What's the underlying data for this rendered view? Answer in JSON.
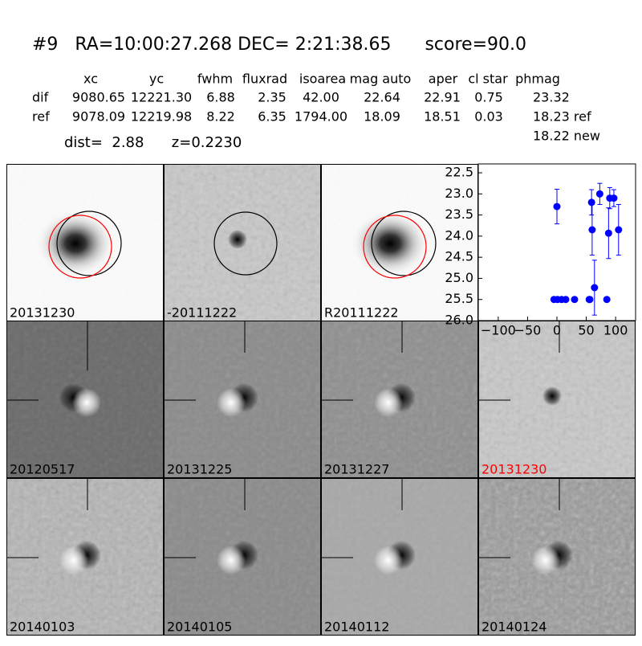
{
  "header": {
    "title": "#9   RA=10:00:27.268 DEC= 2:21:38.65      score=90.0"
  },
  "table": {
    "columns": [
      "xc",
      "yc",
      "fwhm",
      "fluxrad",
      "isoarea",
      "mag auto",
      "aper",
      "cl star",
      "phmag"
    ],
    "rows": [
      {
        "label": "dif",
        "cells": [
          "9080.65",
          "12221.30",
          "6.88",
          "2.35",
          "42.00",
          "22.64",
          "22.91",
          "0.75",
          "23.32"
        ]
      },
      {
        "label": "ref",
        "cells": [
          "9078.09",
          "12219.98",
          "8.22",
          "6.35",
          "1794.00",
          "18.09",
          "18.51",
          "0.03",
          "18.23 ref"
        ]
      }
    ],
    "note": "18.22 new"
  },
  "info": "dist=  2.88      z=0.2230",
  "panels": [
    {
      "label": "20131230"
    },
    {
      "label": "-20111222"
    },
    {
      "label": "R20111222"
    },
    {
      "label": "20120517"
    },
    {
      "label": "20131225"
    },
    {
      "label": "20131227"
    },
    {
      "label": "20131230",
      "label_color": "#ff0000"
    },
    {
      "label": "20140103"
    },
    {
      "label": "20140105"
    },
    {
      "label": "20140112"
    },
    {
      "label": "20140124"
    }
  ],
  "chart_data": {
    "type": "scatter",
    "x": [
      -5,
      1,
      8,
      15,
      30,
      55,
      56,
      85,
      0,
      59,
      60,
      64,
      73,
      88,
      90,
      97,
      105
    ],
    "series": [
      {
        "color": "#0000ff",
        "values": [
          25.5,
          25.5,
          25.5,
          25.5,
          25.5,
          25.5,
          25.5,
          25.5,
          23.3,
          23.2,
          23.85,
          25.22,
          23.0,
          23.93,
          23.1,
          23.1,
          23.85
        ],
        "errors": [
          0,
          0,
          0,
          0,
          0,
          0,
          0,
          0,
          0.41,
          0.3,
          0.6,
          0.65,
          0.25,
          0.6,
          0.25,
          0.2,
          0.6
        ]
      }
    ],
    "xlim": [
      -134,
      134
    ],
    "xticks": [
      {
        "value": -100,
        "label": "−100"
      },
      {
        "value": -50,
        "label": "−50"
      },
      0,
      50,
      100
    ],
    "ylim": [
      26.0,
      22.29
    ],
    "yticks": [
      22.5,
      {
        "value": 23,
        "label": "23.0"
      },
      23.5,
      {
        "value": 24,
        "label": "24.0"
      },
      24.5,
      {
        "value": 25,
        "label": "25.0"
      },
      25.5,
      {
        "value": 26,
        "label": "26.0"
      }
    ],
    "grid": false
  }
}
